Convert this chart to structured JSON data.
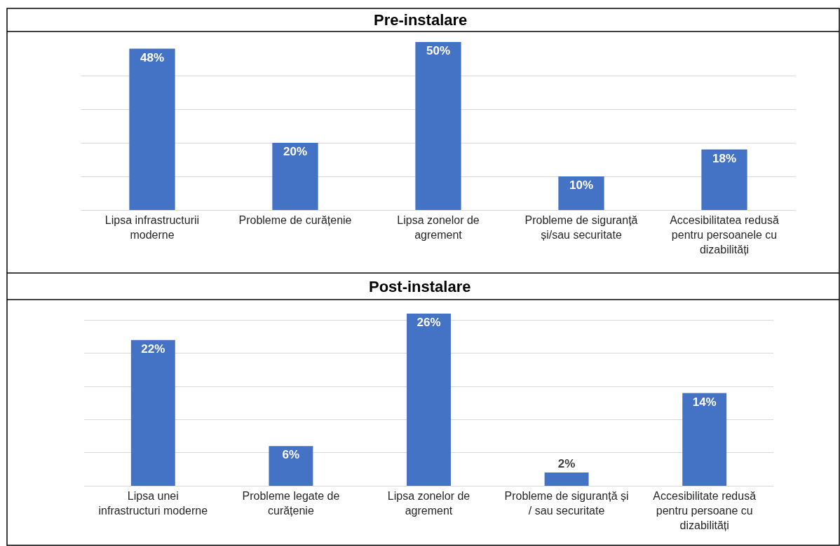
{
  "chart_data": [
    {
      "type": "bar",
      "title": "Pre-instalare",
      "categories": [
        "Lipsa infrastructurii moderne",
        "Probleme de curățenie",
        "Lipsa zonelor de agrement",
        "Probleme de siguranță și/sau securitate",
        "Accesibilitatea redusă pentru persoanele cu dizabilități"
      ],
      "values": [
        48,
        20,
        50,
        10,
        18
      ],
      "value_labels": [
        "48%",
        "20%",
        "50%",
        "10%",
        "18%"
      ],
      "color": "#4472c4",
      "ylim": [
        0,
        50
      ],
      "yticks": [
        {
          "value": 0,
          "label": null
        },
        {
          "value": 10,
          "label": null
        },
        {
          "value": 20,
          "label": null
        },
        {
          "value": 30,
          "label": null
        },
        {
          "value": 40,
          "label": null
        }
      ],
      "grid": "y",
      "tick_labels": "x"
    },
    {
      "type": "bar",
      "title": "Post-instalare",
      "categories": [
        "Lipsa unei infrastructuri moderne",
        "Probleme legate de curățenie",
        "Lipsa zonelor de agrement",
        "Probleme de siguranță și / sau securitate",
        "Accesibilitate redusă pentru persoane cu dizabilități"
      ],
      "values": [
        22,
        6,
        26,
        2,
        14
      ],
      "value_labels": [
        "22%",
        "6%",
        "26%",
        "2%",
        "14%"
      ],
      "color": "#4472c4",
      "ylim": [
        0,
        26
      ],
      "yticks": [
        {
          "value": 0,
          "label": null
        },
        {
          "value": 5,
          "label": null
        },
        {
          "value": 10,
          "label": null
        },
        {
          "value": 15,
          "label": null
        },
        {
          "value": 20,
          "label": null
        },
        {
          "value": 25,
          "label": null
        }
      ],
      "grid": "y",
      "tick_labels": "x"
    }
  ]
}
